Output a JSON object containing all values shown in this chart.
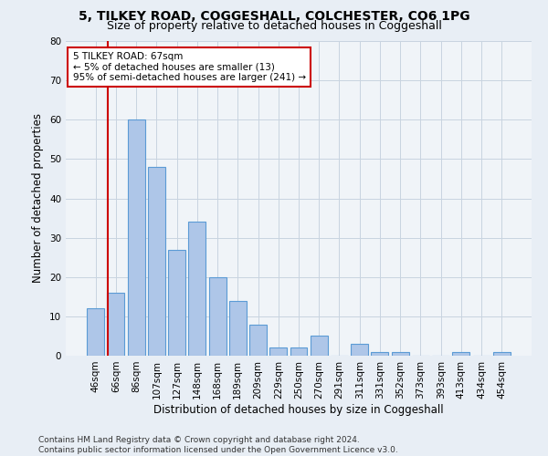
{
  "title1": "5, TILKEY ROAD, COGGESHALL, COLCHESTER, CO6 1PG",
  "title2": "Size of property relative to detached houses in Coggeshall",
  "xlabel": "Distribution of detached houses by size in Coggeshall",
  "ylabel": "Number of detached properties",
  "bar_labels": [
    "46sqm",
    "66sqm",
    "86sqm",
    "107sqm",
    "127sqm",
    "148sqm",
    "168sqm",
    "189sqm",
    "209sqm",
    "229sqm",
    "250sqm",
    "270sqm",
    "291sqm",
    "311sqm",
    "331sqm",
    "352sqm",
    "373sqm",
    "393sqm",
    "413sqm",
    "434sqm",
    "454sqm"
  ],
  "bar_values": [
    12,
    16,
    60,
    48,
    27,
    34,
    20,
    14,
    8,
    2,
    2,
    5,
    0,
    3,
    1,
    1,
    0,
    0,
    1,
    0,
    1
  ],
  "bar_color": "#aec6e8",
  "bar_edge_color": "#5b9bd5",
  "vline_x": 0.58,
  "vline_color": "#cc0000",
  "annotation_text": "5 TILKEY ROAD: 67sqm\n← 5% of detached houses are smaller (13)\n95% of semi-detached houses are larger (241) →",
  "annotation_box_color": "#ffffff",
  "annotation_border_color": "#cc0000",
  "ylim": [
    0,
    80
  ],
  "yticks": [
    0,
    10,
    20,
    30,
    40,
    50,
    60,
    70,
    80
  ],
  "footer": "Contains HM Land Registry data © Crown copyright and database right 2024.\nContains public sector information licensed under the Open Government Licence v3.0.",
  "bg_color": "#e8eef5",
  "plot_bg_color": "#f0f4f8",
  "title_fontsize": 10,
  "subtitle_fontsize": 9,
  "ylabel_fontsize": 8.5,
  "xlabel_fontsize": 8.5,
  "tick_fontsize": 7.5,
  "footer_fontsize": 6.5
}
